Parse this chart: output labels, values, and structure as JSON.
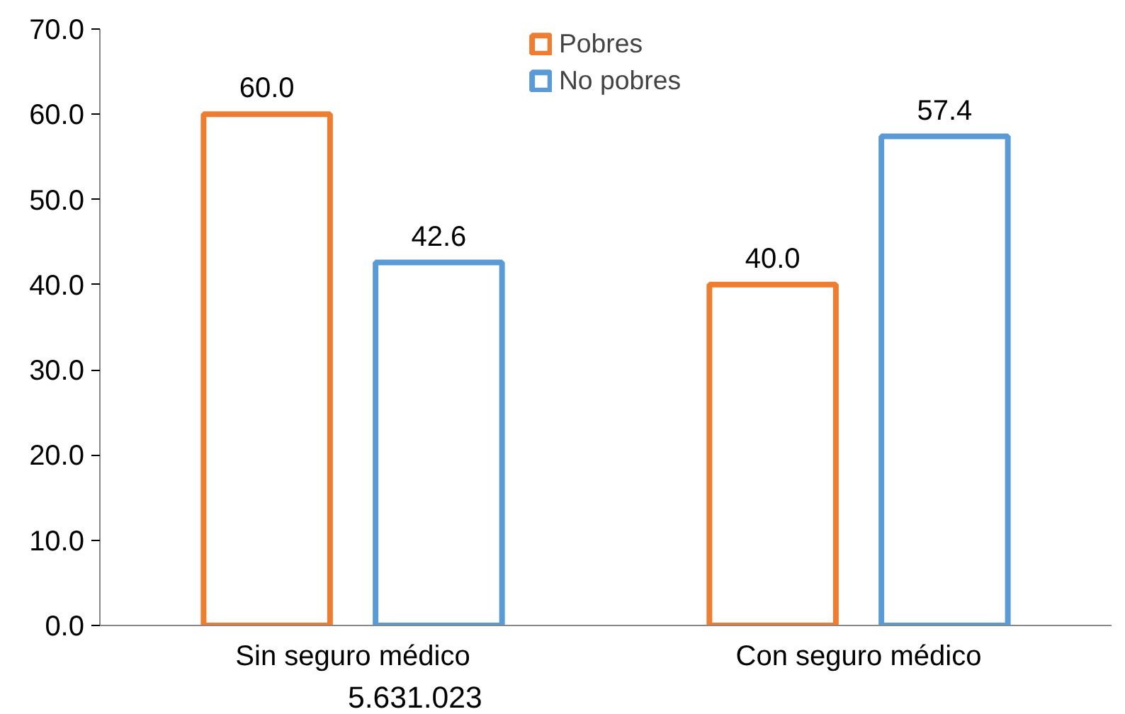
{
  "chart_data": {
    "type": "bar",
    "categories": [
      "Sin seguro médico",
      "Con seguro médico"
    ],
    "series": [
      {
        "name": "Pobres",
        "color": "#ed7d31",
        "values": [
          60.0,
          40.0
        ],
        "value_labels": [
          "60.0",
          "40.0"
        ]
      },
      {
        "name": "No pobres",
        "color": "#5b9bd5",
        "values": [
          42.6,
          57.4
        ],
        "value_labels": [
          "42.6",
          "57.4"
        ]
      }
    ],
    "ylim": [
      0,
      70
    ],
    "yticks": [
      {
        "value": 0,
        "label": "0.0"
      },
      {
        "value": 10,
        "label": "10.0"
      },
      {
        "value": 20,
        "label": "20.0"
      },
      {
        "value": 30,
        "label": "30.0"
      },
      {
        "value": 40,
        "label": "40.0"
      },
      {
        "value": 50,
        "label": "50.0"
      },
      {
        "value": 60,
        "label": "60.0"
      },
      {
        "value": 70,
        "label": "70.0"
      }
    ],
    "grid": false,
    "legend": "top",
    "annotations": [
      "5.631.023"
    ]
  }
}
